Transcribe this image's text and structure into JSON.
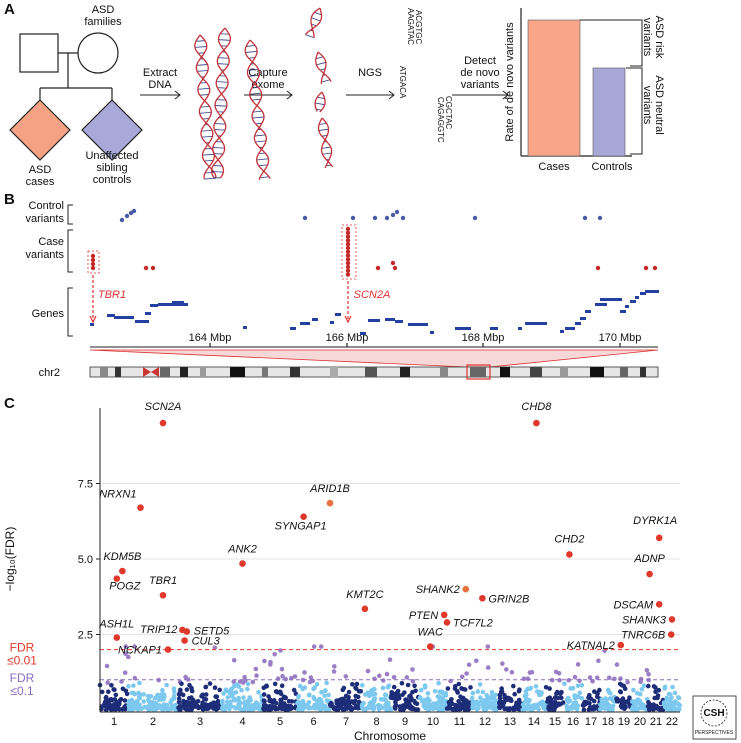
{
  "panel_a": {
    "label": "A",
    "families": [
      "ASD",
      "families"
    ],
    "cases": [
      "ASD",
      "cases"
    ],
    "controls": [
      "Unaffected",
      "sibling",
      "controls"
    ],
    "steps": [
      [
        "Extract",
        "DNA"
      ],
      [
        "Capture",
        "exome"
      ],
      [
        "NGS"
      ],
      [
        "Detect",
        "de novo",
        "variants"
      ]
    ],
    "sequences": [
      "ACGTGC",
      "AAGATAC",
      "ATGACA",
      "CGCTAC",
      "CAGAGGTC"
    ],
    "bar_ylabel": "Rate of de novo variants",
    "bar_categories": [
      "Cases",
      "Controls"
    ],
    "brackets": [
      [
        "ASD risk",
        "variants"
      ],
      [
        "ASD neutral",
        "variants"
      ]
    ]
  },
  "panel_b": {
    "label": "B",
    "tracks": [
      [
        "Control",
        "variants"
      ],
      [
        "Case",
        "variants"
      ],
      [
        "Genes"
      ]
    ],
    "genes": [
      "TBR1",
      "SCN2A"
    ],
    "axis_ticks": [
      "164 Mbp",
      "166 Mbp",
      "168 Mbp",
      "170 Mbp"
    ],
    "chromosome": "chr2"
  },
  "panel_c_label": "C",
  "chart_data": {
    "type": "scatter",
    "xlabel": "Chromosome",
    "ylabel": "−log₁₀(FDR)",
    "xlim": [
      0.5,
      22.5
    ],
    "xticks": [
      1,
      2,
      3,
      4,
      5,
      6,
      7,
      8,
      9,
      10,
      11,
      12,
      13,
      14,
      15,
      16,
      17,
      18,
      19,
      20,
      21,
      22
    ],
    "ylim": [
      0,
      10
    ],
    "yticks": [
      2.5,
      {
        "value": 5,
        "label": "5.0"
      },
      7.5
    ],
    "grid": true,
    "thresholds": [
      {
        "value": 2,
        "label": [
          "FDR",
          "≤0.01"
        ],
        "color": "#e0392b"
      },
      {
        "value": 1,
        "label": [
          "FDR",
          "≤0.1"
        ],
        "color": "#8a6cc0"
      }
    ],
    "color": "#e0392b",
    "points": [
      {
        "gene": "SCN2A",
        "x": 2.2,
        "value": 9.5
      },
      {
        "gene": "CHD8",
        "x": 14.1,
        "value": 9.5
      },
      {
        "gene": "NRXN1",
        "x": 1.75,
        "value": 6.7
      },
      {
        "gene": "ARID1B",
        "x": 6.5,
        "value": 6.85,
        "color": "#e8703a"
      },
      {
        "gene": "SYNGAP1",
        "x": 5.7,
        "value": 6.4
      },
      {
        "gene": "DYRK1A",
        "x": 21.2,
        "value": 5.7
      },
      {
        "gene": "KDM5B",
        "x": 1.3,
        "value": 4.6
      },
      {
        "gene": "ANK2",
        "x": 4.0,
        "value": 4.85
      },
      {
        "gene": "CHD2",
        "x": 15.8,
        "value": 5.15
      },
      {
        "gene": "ADNP",
        "x": 20.6,
        "value": 4.5
      },
      {
        "gene": "POGZ",
        "x": 1.1,
        "value": 4.35
      },
      {
        "gene": "TBR1",
        "x": 2.2,
        "value": 3.8
      },
      {
        "gene": "SHANK2",
        "x": 11.25,
        "value": 4.0,
        "color": "#e8703a"
      },
      {
        "gene": "GRIN2B",
        "x": 11.9,
        "value": 3.7
      },
      {
        "gene": "KMT2C",
        "x": 7.6,
        "value": 3.35
      },
      {
        "gene": "DSCAM",
        "x": 21.2,
        "value": 3.5
      },
      {
        "gene": "PTEN",
        "x": 10.4,
        "value": 3.15
      },
      {
        "gene": "TCF7L2",
        "x": 10.5,
        "value": 2.9
      },
      {
        "gene": "SHANK3",
        "x": 22.0,
        "value": 3.0
      },
      {
        "gene": "TRIP12",
        "x": 2.6,
        "value": 2.65
      },
      {
        "gene": "SETD5",
        "x": 2.7,
        "value": 2.6
      },
      {
        "gene": "ASH1L",
        "x": 1.1,
        "value": 2.4
      },
      {
        "gene": "CUL3",
        "x": 2.65,
        "value": 2.3
      },
      {
        "gene": "TNRC6B",
        "x": 21.95,
        "value": 2.5
      },
      {
        "gene": "WAC",
        "x": 9.9,
        "value": 2.1
      },
      {
        "gene": "KATNAL2",
        "x": 18.8,
        "value": 2.15
      },
      {
        "gene": "NCKAP1",
        "x": 2.3,
        "value": 2.0
      }
    ]
  },
  "logo": [
    "CSH",
    "PERSPECTIVES"
  ]
}
